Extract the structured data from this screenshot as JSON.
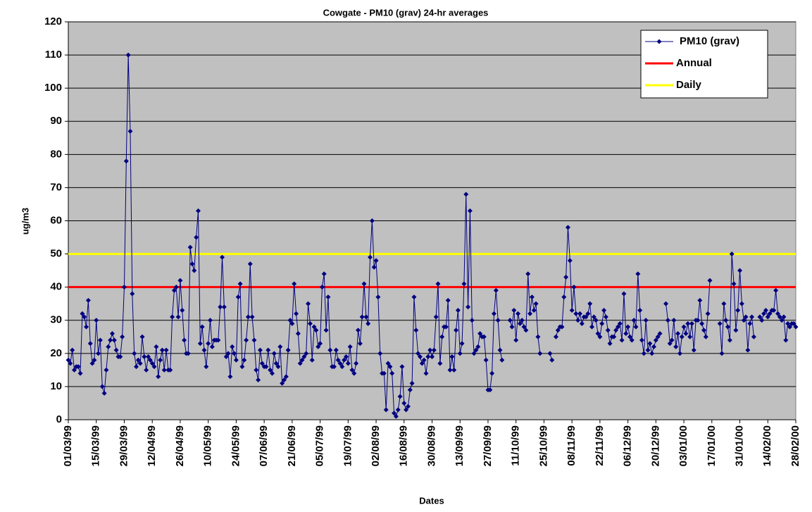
{
  "chart_data": {
    "type": "line",
    "title": "Cowgate -  PM10 (grav) 24-hr averages",
    "x_label": "Dates",
    "y_label": "ug/m3",
    "categories": [
      "01/03/99",
      null,
      null,
      null,
      null,
      null,
      null,
      null,
      null,
      null,
      null,
      null,
      null,
      null,
      "15/03/99",
      null,
      null,
      null,
      null,
      null,
      null,
      null,
      null,
      null,
      null,
      null,
      null,
      null,
      "29/03/99",
      null,
      null,
      null,
      null,
      null,
      null,
      null,
      null,
      null,
      null,
      null,
      null,
      null,
      "12/04/99",
      null,
      null,
      null,
      null,
      null,
      null,
      null,
      null,
      null,
      null,
      null,
      null,
      null,
      "26/04/99",
      null,
      null,
      null,
      null,
      null,
      null,
      null,
      null,
      null,
      null,
      null,
      null,
      null,
      "10/05/99",
      null,
      null,
      null,
      null,
      null,
      null,
      null,
      null,
      null,
      null,
      null,
      null,
      null,
      "24/05/99",
      null,
      null,
      null,
      null,
      null,
      null,
      null,
      null,
      null,
      null,
      null,
      null,
      null,
      "07/06/99",
      null,
      null,
      null,
      null,
      null,
      null,
      null,
      null,
      null,
      null,
      null,
      null,
      null,
      "21/06/99",
      null,
      null,
      null,
      null,
      null,
      null,
      null,
      null,
      null,
      null,
      null,
      null,
      null,
      "05/07/99",
      null,
      null,
      null,
      null,
      null,
      null,
      null,
      null,
      null,
      null,
      null,
      null,
      null,
      "19/07/99",
      null,
      null,
      null,
      null,
      null,
      null,
      null,
      null,
      null,
      null,
      null,
      null,
      null,
      "02/08/99",
      null,
      null,
      null,
      null,
      null,
      null,
      null,
      null,
      null,
      null,
      null,
      null,
      null,
      "16/08/99",
      null,
      null,
      null,
      null,
      null,
      null,
      null,
      null,
      null,
      null,
      null,
      null,
      null,
      "30/08/99",
      null,
      null,
      null,
      null,
      null,
      null,
      null,
      null,
      null,
      null,
      null,
      null,
      null,
      "13/09/99",
      null,
      null,
      null,
      null,
      null,
      null,
      null,
      null,
      null,
      null,
      null,
      null,
      null,
      "27/09/99",
      null,
      null,
      null,
      null,
      null,
      null,
      null,
      null,
      null,
      null,
      null,
      null,
      null,
      "11/10/99",
      null,
      null,
      null,
      null,
      null,
      null,
      null,
      null,
      null,
      null,
      null,
      null,
      null,
      "25/10/99",
      null,
      null,
      null,
      null,
      null,
      null,
      null,
      null,
      null,
      null,
      null,
      null,
      null,
      "08/11/99",
      null,
      null,
      null,
      null,
      null,
      null,
      null,
      null,
      null,
      null,
      null,
      null,
      null,
      "22/11/99",
      null,
      null,
      null,
      null,
      null,
      null,
      null,
      null,
      null,
      null,
      null,
      null,
      null,
      "06/12/99",
      null,
      null,
      null,
      null,
      null,
      null,
      null,
      null,
      null,
      null,
      null,
      null,
      null,
      "20/12/99",
      null,
      null,
      null,
      null,
      null,
      null,
      null,
      null,
      null,
      null,
      null,
      null,
      null,
      "03/01/00",
      null,
      null,
      null,
      null,
      null,
      null,
      null,
      null,
      null,
      null,
      null,
      null,
      null,
      "17/01/00",
      null,
      null,
      null,
      null,
      null,
      null,
      null,
      null,
      null,
      null,
      null,
      null,
      null,
      "31/01/00",
      null,
      null,
      null,
      null,
      null,
      null,
      null,
      null,
      null,
      null,
      null,
      null,
      null,
      "14/02/00",
      null,
      null,
      null,
      null,
      null,
      null,
      null,
      null,
      null,
      null,
      null,
      null,
      null,
      "28/02/00"
    ],
    "series": [
      {
        "name": "PM10 (grav)",
        "color": "#000080",
        "values": [
          18,
          17,
          21,
          15,
          16,
          16,
          14,
          32,
          31,
          28,
          36,
          23,
          17,
          18,
          30,
          20,
          24,
          10,
          8,
          15,
          22,
          24,
          26,
          24,
          21,
          19,
          19,
          25,
          40,
          78,
          110,
          87,
          38,
          20,
          16,
          18,
          17,
          25,
          19,
          15,
          19,
          18,
          17,
          16,
          22,
          13,
          18,
          21,
          15,
          21,
          15,
          15,
          31,
          39,
          40,
          31,
          42,
          33,
          24,
          20,
          20,
          52,
          47,
          45,
          55,
          63,
          23,
          28,
          21,
          16,
          23,
          30,
          22,
          24,
          24,
          24,
          34,
          49,
          34,
          19,
          20,
          13,
          22,
          20,
          18,
          37,
          41,
          16,
          18,
          24,
          31,
          47,
          31,
          24,
          15,
          12,
          21,
          17,
          16,
          16,
          21,
          15,
          14,
          20,
          17,
          16,
          22,
          11,
          12,
          13,
          21,
          30,
          29,
          41,
          32,
          26,
          17,
          18,
          19,
          20,
          35,
          29,
          18,
          28,
          27,
          22,
          23,
          40,
          44,
          27,
          37,
          21,
          16,
          16,
          21,
          18,
          17,
          16,
          18,
          19,
          17,
          22,
          15,
          14,
          17,
          27,
          23,
          31,
          41,
          31,
          29,
          49,
          60,
          46,
          48,
          37,
          20,
          14,
          14,
          3,
          17,
          16,
          14,
          2,
          1,
          3,
          7,
          16,
          5,
          3,
          4,
          9,
          11,
          37,
          27,
          20,
          19,
          17,
          18,
          14,
          19,
          21,
          19,
          21,
          31,
          41,
          17,
          25,
          28,
          28,
          36,
          15,
          19,
          15,
          27,
          33,
          20,
          23,
          41,
          68,
          34,
          63,
          30,
          20,
          21,
          22,
          26,
          25,
          25,
          18,
          9,
          9,
          14,
          32,
          39,
          30,
          21,
          18,
          null,
          null,
          null,
          30,
          28,
          33,
          24,
          32,
          29,
          30,
          28,
          27,
          44,
          32,
          37,
          33,
          35,
          25,
          20,
          null,
          null,
          null,
          null,
          20,
          18,
          null,
          25,
          27,
          28,
          28,
          37,
          43,
          58,
          48,
          33,
          40,
          32,
          30,
          32,
          29,
          31,
          31,
          32,
          35,
          28,
          31,
          30,
          26,
          25,
          29,
          33,
          31,
          27,
          23,
          25,
          25,
          27,
          28,
          29,
          24,
          38,
          26,
          28,
          25,
          24,
          30,
          28,
          44,
          33,
          24,
          20,
          30,
          21,
          23,
          20,
          22,
          24,
          25,
          26,
          null,
          null,
          35,
          30,
          23,
          24,
          30,
          22,
          26,
          20,
          25,
          28,
          26,
          29,
          25,
          29,
          21,
          30,
          30,
          36,
          29,
          27,
          25,
          32,
          42,
          null,
          null,
          null,
          null,
          29,
          20,
          35,
          30,
          28,
          24,
          50,
          41,
          27,
          33,
          45,
          35,
          30,
          31,
          21,
          29,
          31,
          25,
          null,
          null,
          31,
          30,
          32,
          33,
          31,
          32,
          33,
          33,
          39,
          32,
          31,
          30,
          31,
          24,
          29,
          28,
          29,
          29,
          28
        ]
      }
    ],
    "reference_lines": [
      {
        "name": "Annual",
        "value": 40,
        "color": "#ff0000"
      },
      {
        "name": "Daily",
        "value": 50,
        "color": "#ffff00"
      }
    ],
    "ylim": [
      0,
      120
    ],
    "yticks": [
      0,
      10,
      20,
      30,
      40,
      50,
      60,
      70,
      80,
      90,
      100,
      110,
      120
    ],
    "grid": true,
    "legend": "top-right",
    "background": "#c0c0c0"
  }
}
